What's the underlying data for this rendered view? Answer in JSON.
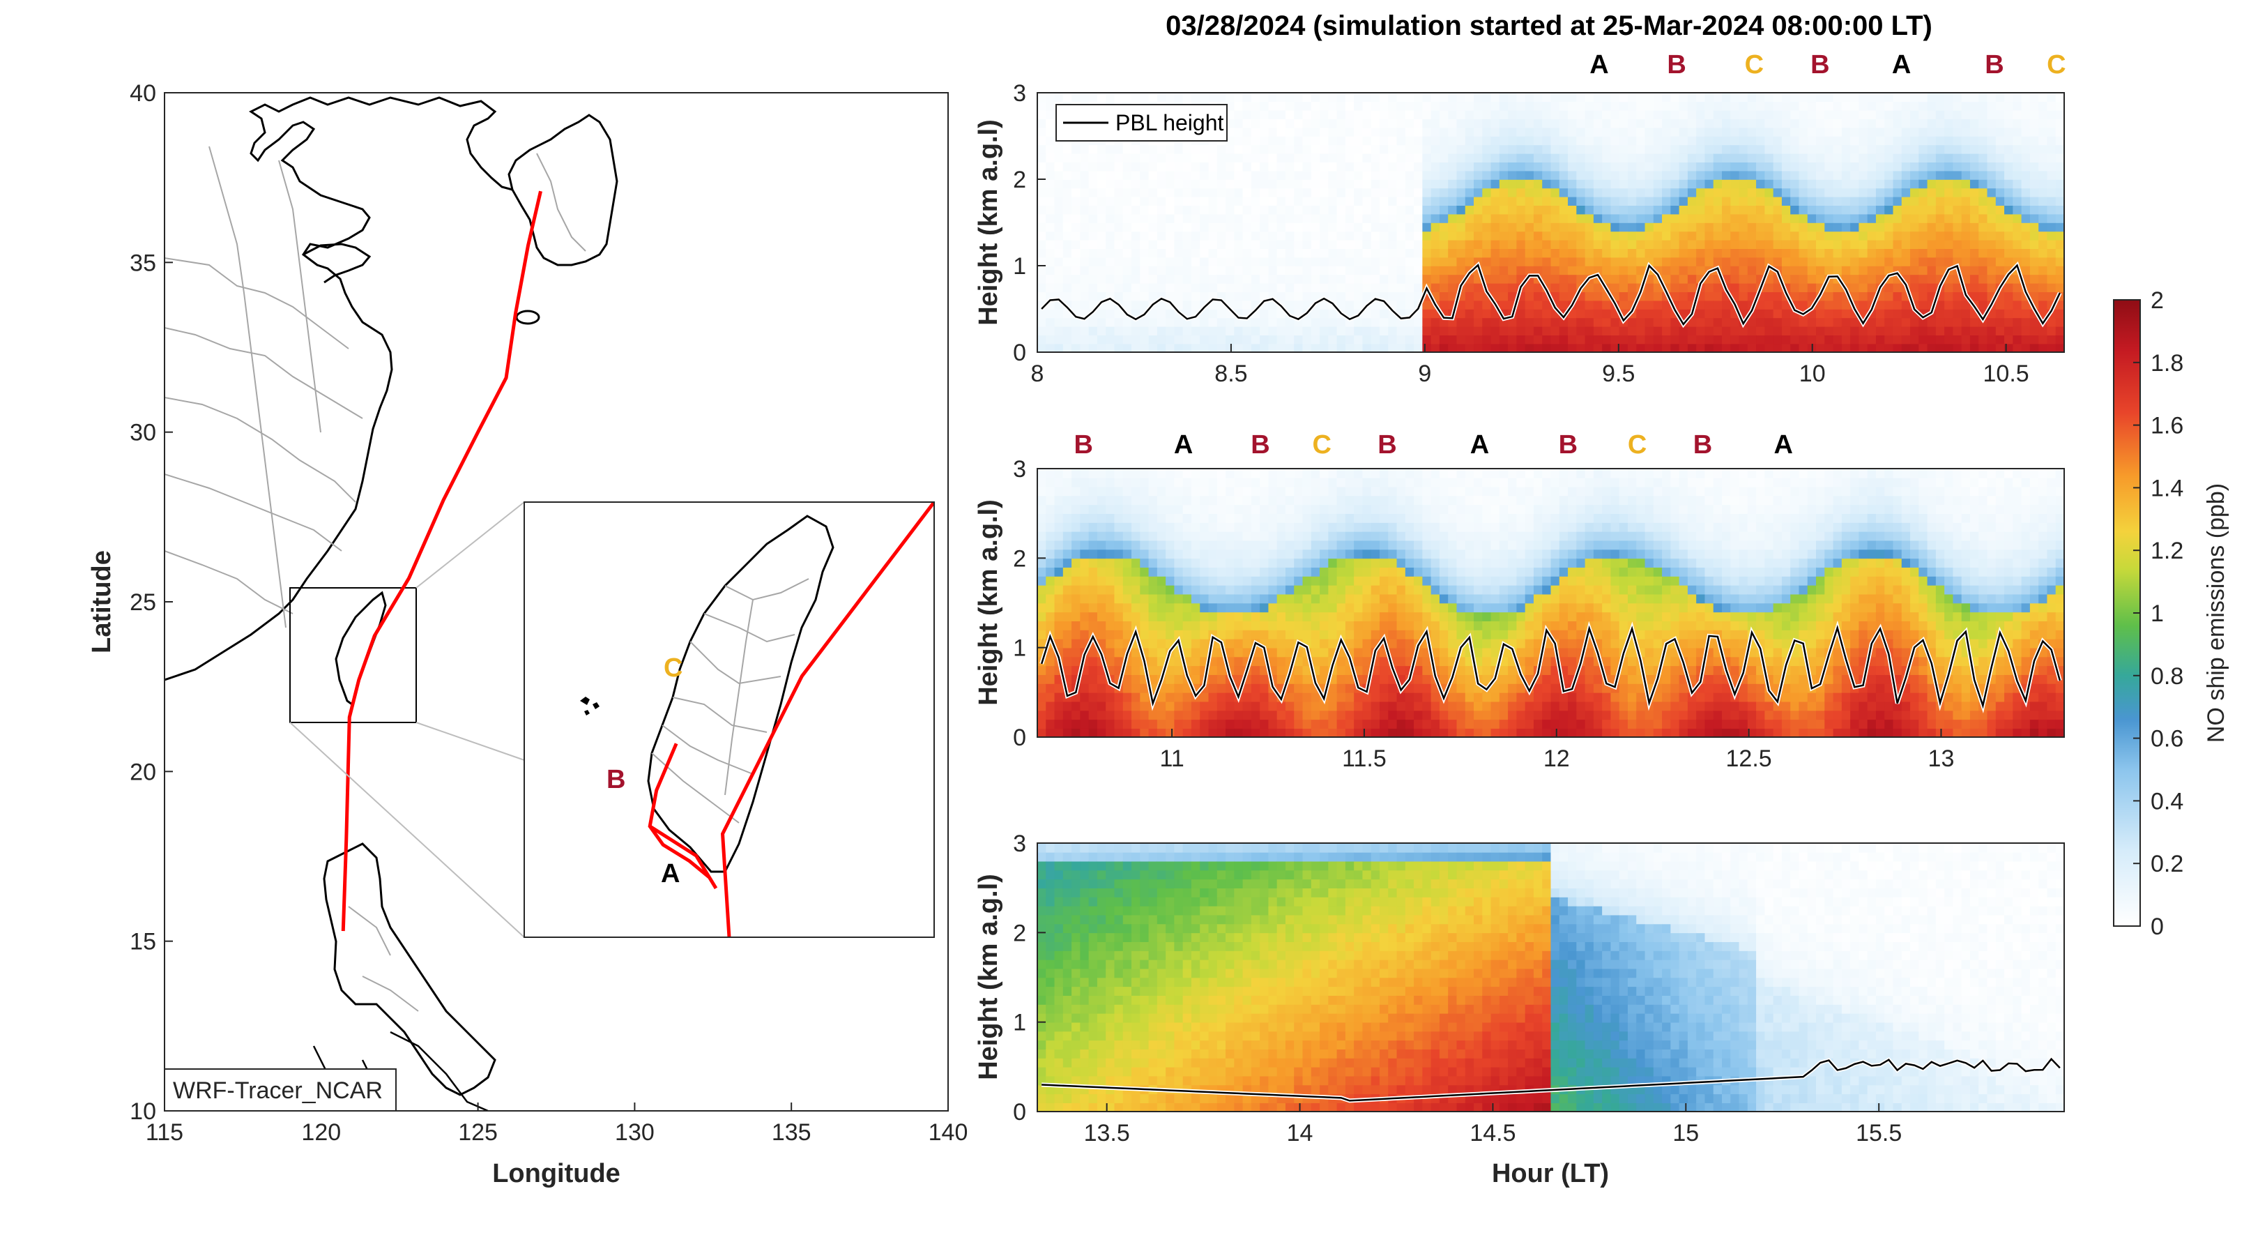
{
  "title": "03/28/2024 (simulation started at 25-Mar-2024 08:00:00 LT)",
  "colors": {
    "track": "#ff0000",
    "label_A": "#000000",
    "label_B": "#a3132d",
    "label_C": "#edb120",
    "coast": "#000000",
    "borders": "#a6a6a6",
    "pbl": "#000000"
  },
  "chart_data": [
    {
      "type": "map",
      "name": "track-map",
      "xlabel": "Longitude",
      "ylabel": "Latitude",
      "xlim": [
        115,
        140
      ],
      "ylim": [
        10,
        40
      ],
      "xticks": [
        115,
        120,
        125,
        130,
        135,
        140
      ],
      "yticks": [
        10,
        15,
        20,
        25,
        30,
        35,
        40
      ],
      "model_label": "WRF-Tracer_NCAR",
      "track": [
        [
          127.0,
          37.1
        ],
        [
          126.6,
          35.5
        ],
        [
          126.2,
          33.5
        ],
        [
          125.9,
          31.6
        ],
        [
          125.0,
          30.0
        ],
        [
          123.9,
          28.0
        ],
        [
          122.8,
          25.7
        ],
        [
          121.7,
          24.0
        ],
        [
          121.2,
          22.7
        ],
        [
          120.9,
          21.6
        ],
        [
          120.8,
          18.0
        ],
        [
          120.7,
          15.3
        ]
      ],
      "inset": {
        "xlim": [
          119.2,
          122.3
        ],
        "ylim": [
          21.6,
          25.6
        ],
        "track": [
          [
            122.3,
            25.6
          ],
          [
            121.3,
            24.0
          ],
          [
            120.7,
            22.55
          ],
          [
            120.75,
            21.6
          ]
        ],
        "route_points": [
          {
            "name": "C",
            "lon": 120.35,
            "lat": 23.38
          },
          {
            "name": "B",
            "lon": 120.15,
            "lat": 22.62
          },
          {
            "name": "A",
            "lon": 120.6,
            "lat": 22.15
          }
        ],
        "route": [
          [
            120.35,
            23.38
          ],
          [
            120.2,
            22.95
          ],
          [
            120.15,
            22.62
          ],
          [
            120.25,
            22.45
          ],
          [
            120.45,
            22.3
          ],
          [
            120.6,
            22.15
          ],
          [
            120.65,
            22.05
          ],
          [
            120.5,
            22.35
          ],
          [
            120.15,
            22.62
          ]
        ]
      }
    },
    {
      "type": "heatmap",
      "name": "panel-1",
      "ylabel": "Height (km a.g.l)",
      "xlim": [
        8,
        10.65
      ],
      "ylim": [
        0,
        3
      ],
      "xticks": [
        "8",
        "8.5",
        "9",
        "9.5",
        "10",
        "10.5"
      ],
      "yticks": [
        "0",
        "1",
        "2",
        "3"
      ],
      "legend": "PBL height",
      "site_markers": [
        {
          "x": 9.45,
          "label": "A"
        },
        {
          "x": 9.65,
          "label": "B"
        },
        {
          "x": 9.85,
          "label": "C"
        },
        {
          "x": 10.02,
          "label": "B"
        },
        {
          "x": 10.23,
          "label": "A"
        },
        {
          "x": 10.47,
          "label": "B"
        },
        {
          "x": 10.63,
          "label": "C"
        }
      ]
    },
    {
      "type": "heatmap",
      "name": "panel-2",
      "ylabel": "Height (km a.g.l)",
      "xlim": [
        10.65,
        13.32
      ],
      "ylim": [
        0,
        3
      ],
      "xticks": [
        "11",
        "11.5",
        "12",
        "12.5",
        "13"
      ],
      "yticks": [
        "0",
        "1",
        "2",
        "3"
      ],
      "site_markers": [
        {
          "x": 10.77,
          "label": "B"
        },
        {
          "x": 11.03,
          "label": "A"
        },
        {
          "x": 11.23,
          "label": "B"
        },
        {
          "x": 11.39,
          "label": "C"
        },
        {
          "x": 11.56,
          "label": "B"
        },
        {
          "x": 11.8,
          "label": "A"
        },
        {
          "x": 12.03,
          "label": "B"
        },
        {
          "x": 12.21,
          "label": "C"
        },
        {
          "x": 12.38,
          "label": "B"
        },
        {
          "x": 12.59,
          "label": "A"
        }
      ]
    },
    {
      "type": "heatmap",
      "name": "panel-3",
      "xlabel": "Hour (LT)",
      "ylabel": "Height (km a.g.l)",
      "xlim": [
        13.32,
        15.98
      ],
      "ylim": [
        0,
        3
      ],
      "xticks": [
        "13.5",
        "14",
        "14.5",
        "15",
        "15.5"
      ],
      "yticks": [
        "0",
        "1",
        "2",
        "3"
      ]
    }
  ],
  "colorbar": {
    "label": "NO ship emissions (ppb)",
    "min": 0,
    "max": 2,
    "ticks": [
      "0",
      "0.2",
      "0.4",
      "0.6",
      "0.8",
      "1",
      "1.2",
      "1.4",
      "1.6",
      "1.8",
      "2"
    ]
  }
}
